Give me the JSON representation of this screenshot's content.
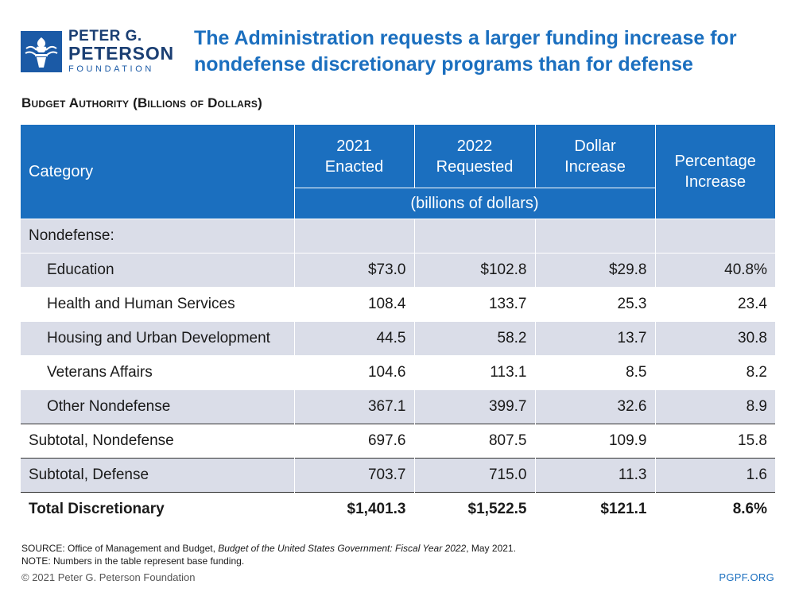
{
  "logo": {
    "line1": "PETER G.",
    "line2": "PETERSON",
    "line3": "FOUNDATION",
    "icon": "torch-icon"
  },
  "title": "The Administration requests a larger funding increase for nondefense discretionary programs than for defense",
  "subtitle": "Budget Authority (Billions of Dollars)",
  "table": {
    "headers": {
      "category": "Category",
      "enacted_2021": "2021 Enacted",
      "requested_2022": "2022 Requested",
      "dollar_increase": "Dollar Increase",
      "percentage_increase": "Percentage Increase",
      "units": "(billions of dollars)"
    },
    "group_label": "Nondefense:",
    "rows": [
      {
        "category": "Education",
        "enacted": "$73.0",
        "requested": "$102.8",
        "dollar": "$29.8",
        "percent": "40.8%"
      },
      {
        "category": "Health and Human Services",
        "enacted": "108.4",
        "requested": "133.7",
        "dollar": "25.3",
        "percent": "23.4"
      },
      {
        "category": "Housing and Urban Development",
        "enacted": "44.5",
        "requested": "58.2",
        "dollar": "13.7",
        "percent": "30.8"
      },
      {
        "category": "Veterans Affairs",
        "enacted": "104.6",
        "requested": "113.1",
        "dollar": "8.5",
        "percent": "8.2"
      },
      {
        "category": "Other Nondefense",
        "enacted": "367.1",
        "requested": "399.7",
        "dollar": "32.6",
        "percent": "8.9"
      }
    ],
    "subtotal_nondefense": {
      "category": "Subtotal, Nondefense",
      "enacted": "697.6",
      "requested": "807.5",
      "dollar": "109.9",
      "percent": "15.8"
    },
    "subtotal_defense": {
      "category": "Subtotal, Defense",
      "enacted": "703.7",
      "requested": "715.0",
      "dollar": "11.3",
      "percent": "1.6"
    },
    "total": {
      "category": "Total Discretionary",
      "enacted": "$1,401.3",
      "requested": "$1,522.5",
      "dollar": "$121.1",
      "percent": "8.6%"
    }
  },
  "footnotes": {
    "source_prefix": "SOURCE: Office of Management and Budget, ",
    "source_title": "Budget of the United States Government: Fiscal Year 2022",
    "source_suffix": ", May 2021.",
    "note": "NOTE: Numbers in the table represent base funding."
  },
  "copyright": "© 2021 Peter G. Peterson Foundation",
  "site": "PGPF.ORG",
  "colors": {
    "brand_blue": "#1b6fbf",
    "logo_navy": "#1b3f73",
    "row_shade": "#dadde8"
  }
}
